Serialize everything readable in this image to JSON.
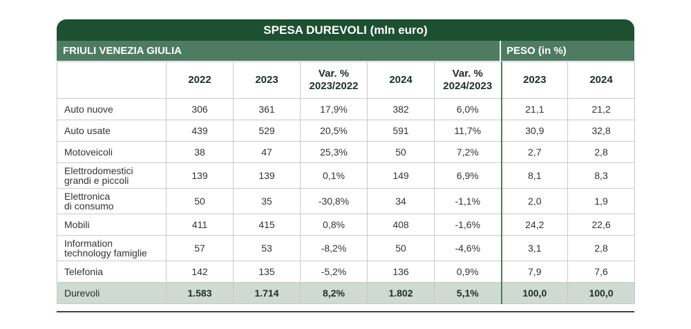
{
  "title": "SPESA DUREVOLI (mln euro)",
  "region": "FRIULI VENEZIA GIULIA",
  "peso_label": "PESO (in %)",
  "columns": [
    "2022",
    "2023",
    "Var. %\n2023/2022",
    "2024",
    "Var. %\n2024/2023",
    "2023",
    "2024"
  ],
  "rows": [
    {
      "label": "Auto nuove",
      "values": [
        "306",
        "361",
        "17,9%",
        "382",
        "6,0%",
        "21,1",
        "21,2"
      ]
    },
    {
      "label": "Auto usate",
      "values": [
        "439",
        "529",
        "20,5%",
        "591",
        "11,7%",
        "30,9",
        "32,8"
      ]
    },
    {
      "label": "Motoveicoli",
      "values": [
        "38",
        "47",
        "25,3%",
        "50",
        "7,2%",
        "2,7",
        "2,8"
      ]
    },
    {
      "label": "Elettrodomestici\ngrandi e piccoli",
      "values": [
        "139",
        "139",
        "0,1%",
        "149",
        "6,9%",
        "8,1",
        "8,3"
      ]
    },
    {
      "label": "Elettronica\ndi consumo",
      "values": [
        "50",
        "35",
        "-30,8%",
        "34",
        "-1,1%",
        "2,0",
        "1,9"
      ]
    },
    {
      "label": "Mobili",
      "values": [
        "411",
        "415",
        "0,8%",
        "408",
        "-1,6%",
        "24,2",
        "22,6"
      ]
    },
    {
      "label": "Information\ntechnology famiglie",
      "values": [
        "57",
        "53",
        "-8,2%",
        "50",
        "-4,6%",
        "3,1",
        "2,8"
      ]
    },
    {
      "label": "Telefonia",
      "values": [
        "142",
        "135",
        "-5,2%",
        "136",
        "0,9%",
        "7,9",
        "7,6"
      ]
    }
  ],
  "total": {
    "label": "Durevoli",
    "values": [
      "1.583",
      "1.714",
      "8,2%",
      "1.802",
      "5,1%",
      "100,0",
      "100,0"
    ]
  }
}
